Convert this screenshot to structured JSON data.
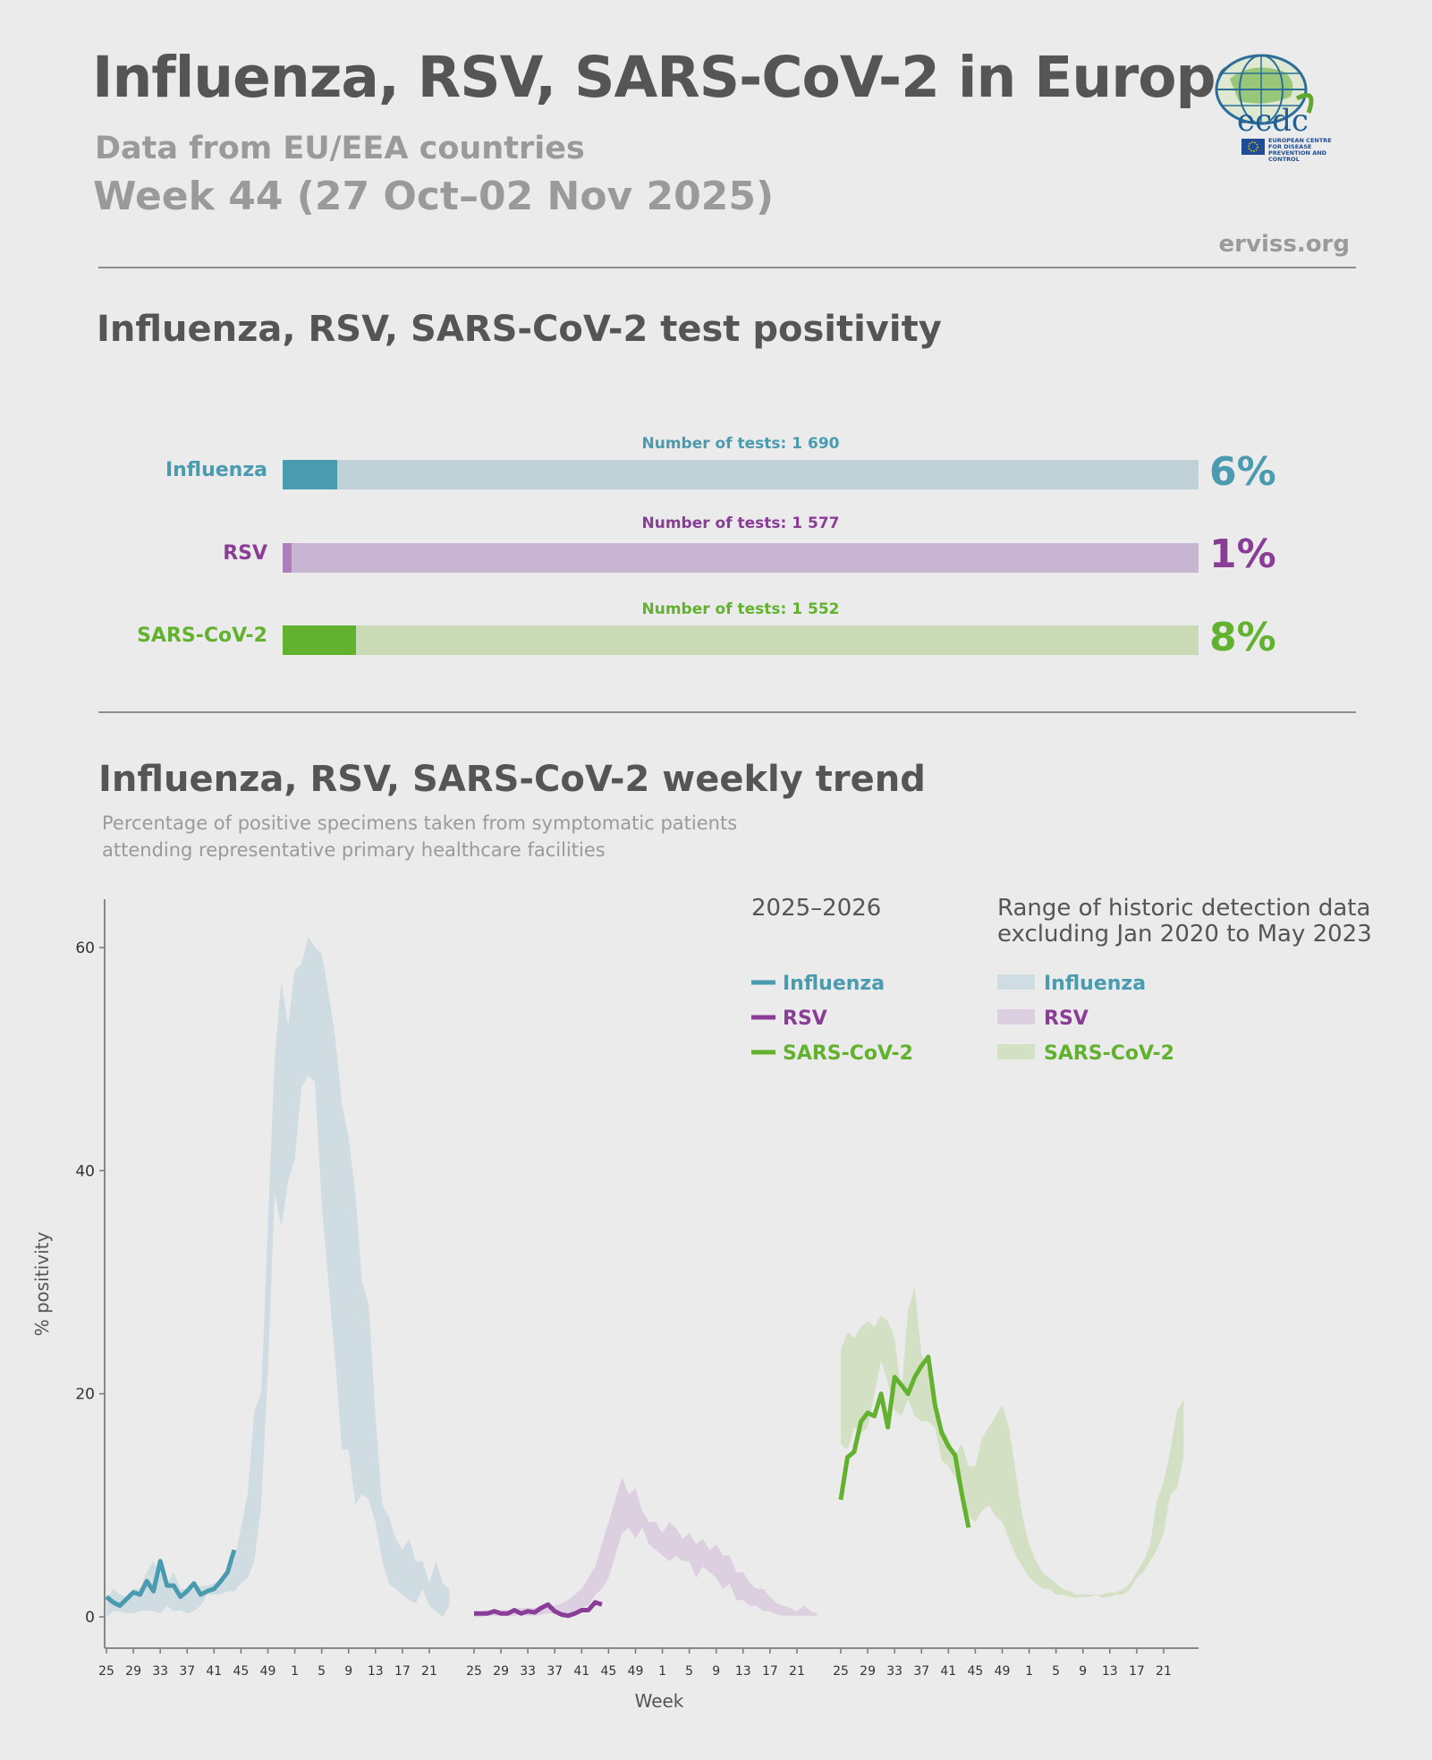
{
  "header": {
    "title": "Influenza, RSV, SARS-CoV-2 in Europe",
    "subtitle": "Data from EU/EEA countries",
    "week": "Week 44 (27 Oct–02 Nov 2025)",
    "source": "erviss.org"
  },
  "logo": {
    "acronym": "ecdc",
    "org_name": "EUROPEAN CENTRE FOR DISEASE PREVENTION AND CONTROL"
  },
  "positivity": {
    "title": "Influenza, RSV, SARS-CoV-2 test positivity",
    "rows": [
      {
        "name": "Influenza",
        "tests_label": "Number of tests: 1 690",
        "value": 6,
        "pct_label": "6%",
        "color": "#4a9bb0",
        "track_color": "#bfd0d6"
      },
      {
        "name": "RSV",
        "tests_label": "Number of tests: 1 577",
        "value": 1,
        "pct_label": "1%",
        "color": "#b07dbb",
        "label_color": "#8a3d97",
        "track_color": "#c8b5d3"
      },
      {
        "name": "SARS-CoV-2",
        "tests_label": "Number of tests: 1 552",
        "value": 8,
        "pct_label": "8%",
        "color": "#63b22f",
        "track_color": "#cad9b6"
      }
    ]
  },
  "trend": {
    "title": "Influenza, RSV, SARS-CoV-2 weekly trend",
    "description_line1": "Percentage of positive specimens taken from symptomatic patients",
    "description_line2": "attending representative primary healthcare facilities",
    "legend_current_title": "2025–2026",
    "legend_range_title_line1": "Range of historic detection data",
    "legend_range_title_line2": "excluding Jan 2020 to May 2023"
  },
  "chart_data": {
    "type": "line",
    "ylabel": "% positivity",
    "xlabel": "Week",
    "ylim": [
      -2.5,
      64
    ],
    "yticks": [
      0,
      20,
      40,
      60
    ],
    "xtick_labels": [
      "25",
      "29",
      "33",
      "37",
      "41",
      "45",
      "49",
      "1",
      "5",
      "9",
      "13",
      "17",
      "21"
    ],
    "weeks": [
      25,
      26,
      27,
      28,
      29,
      30,
      31,
      32,
      33,
      34,
      35,
      36,
      37,
      38,
      39,
      40,
      41,
      42,
      43,
      44,
      45,
      46,
      47,
      48,
      49,
      50,
      51,
      52,
      1,
      2,
      3,
      4,
      5,
      6,
      7,
      8,
      9,
      10,
      11,
      12,
      13,
      14,
      15,
      16,
      17,
      18,
      19,
      20,
      21,
      22,
      23,
      24
    ],
    "panels": [
      {
        "name": "Influenza",
        "color": "#4a9bb0",
        "band_color": "#cfdce2",
        "current": [
          1.8,
          1.3,
          1.0,
          1.6,
          2.2,
          2.0,
          3.2,
          2.3,
          5.0,
          2.8,
          2.8,
          1.8,
          2.3,
          3.0,
          2.0,
          2.3,
          2.5,
          3.2,
          4.0,
          6.0
        ],
        "range_low": [
          0.0,
          0.5,
          0.5,
          0.3,
          0.3,
          0.5,
          0.6,
          0.5,
          0.3,
          1.0,
          0.5,
          0.6,
          0.3,
          0.5,
          1.0,
          2.0,
          2.0,
          2.0,
          2.3,
          2.3,
          3.0,
          3.5,
          5.0,
          10.0,
          22.0,
          38.0,
          35.0,
          39.0,
          41.0,
          47.5,
          48.5,
          48.0,
          37.0,
          30.0,
          23.0,
          15.0,
          15.0,
          10.0,
          11.0,
          10.5,
          8.5,
          5.0,
          3.0,
          2.5,
          2.0,
          1.5,
          1.2,
          2.5,
          1.0,
          0.5,
          0.0,
          1.0
        ],
        "range_high": [
          1.5,
          2.5,
          2.0,
          1.8,
          2.5,
          2.5,
          4.0,
          5.0,
          3.8,
          3.0,
          4.0,
          2.5,
          2.5,
          2.5,
          2.8,
          2.8,
          3.0,
          3.2,
          4.0,
          5.0,
          8.0,
          11.0,
          18.5,
          20.0,
          35.0,
          50.0,
          57.0,
          53.0,
          58.0,
          58.5,
          61.0,
          60.0,
          59.5,
          56.0,
          52.0,
          46.0,
          43.0,
          38.0,
          30.0,
          28.0,
          18.0,
          10.0,
          9.0,
          7.0,
          6.0,
          7.0,
          5.0,
          5.0,
          3.0,
          5.0,
          3.0,
          2.5
        ]
      },
      {
        "name": "RSV",
        "color": "#8a3d97",
        "band_color": "#dccfe0",
        "current": [
          0.3,
          0.3,
          0.3,
          0.5,
          0.3,
          0.3,
          0.6,
          0.3,
          0.5,
          0.4,
          0.8,
          1.1,
          0.5,
          0.2,
          0.1,
          0.3,
          0.6,
          0.6,
          1.3,
          1.1
        ],
        "range_low": [
          0.0,
          0.0,
          0.1,
          0.1,
          0.1,
          0.1,
          0.1,
          0.2,
          0.1,
          0.1,
          0.2,
          0.3,
          0.3,
          0.2,
          0.3,
          0.5,
          0.8,
          1.0,
          2.0,
          2.5,
          3.5,
          5.5,
          7.5,
          8.0,
          7.0,
          8.0,
          6.5,
          6.0,
          5.5,
          5.0,
          5.5,
          5.0,
          5.0,
          3.5,
          4.5,
          4.0,
          3.5,
          2.5,
          3.0,
          1.5,
          1.5,
          1.0,
          1.0,
          0.5,
          0.5,
          0.2,
          0.1,
          0.1,
          0.1,
          0.1,
          0.1,
          0.1
        ],
        "range_high": [
          0.5,
          0.5,
          0.6,
          0.6,
          0.6,
          0.6,
          0.7,
          0.8,
          0.8,
          0.8,
          1.0,
          1.0,
          1.0,
          1.2,
          1.5,
          2.0,
          2.5,
          3.5,
          4.5,
          6.5,
          8.5,
          10.5,
          12.5,
          11.0,
          11.5,
          9.5,
          8.5,
          8.5,
          7.5,
          8.5,
          8.0,
          7.0,
          7.5,
          6.5,
          7.0,
          6.0,
          6.5,
          5.5,
          5.5,
          4.0,
          4.0,
          3.0,
          2.5,
          2.5,
          1.8,
          1.2,
          1.0,
          0.8,
          0.5,
          1.0,
          0.5,
          0.3
        ]
      },
      {
        "name": "SARS-CoV-2",
        "color": "#63b22f",
        "band_color": "#d3e0c4",
        "current": [
          10.5,
          14.3,
          14.8,
          17.5,
          18.3,
          18.0,
          20.0,
          17.0,
          21.5,
          20.8,
          20.0,
          21.5,
          22.5,
          23.3,
          19.0,
          16.5,
          15.3,
          14.5,
          11.0,
          8.0
        ],
        "range_low": [
          15.5,
          15.0,
          17.0,
          16.5,
          17.0,
          20.0,
          23.0,
          21.0,
          18.5,
          18.0,
          19.5,
          18.0,
          17.5,
          17.5,
          17.0,
          14.0,
          13.5,
          12.5,
          11.0,
          9.0,
          8.5,
          9.5,
          10.0,
          9.0,
          8.5,
          7.0,
          5.5,
          4.5,
          3.5,
          3.0,
          2.5,
          2.5,
          2.0,
          2.0,
          1.8,
          1.7,
          1.8,
          1.8,
          2.0,
          1.7,
          1.8,
          2.0,
          2.0,
          2.5,
          3.5,
          4.0,
          5.0,
          6.0,
          7.5,
          11.0,
          11.5,
          14.5
        ],
        "range_high": [
          24.0,
          25.5,
          25.0,
          26.0,
          26.5,
          26.0,
          27.0,
          26.5,
          25.0,
          20.0,
          27.5,
          29.5,
          23.5,
          22.0,
          20.0,
          17.0,
          16.0,
          14.5,
          15.5,
          13.5,
          13.5,
          16.0,
          17.0,
          18.0,
          19.0,
          17.0,
          13.0,
          9.0,
          6.5,
          5.0,
          4.0,
          3.5,
          3.0,
          2.5,
          2.3,
          2.0,
          2.0,
          2.0,
          2.0,
          2.0,
          2.2,
          2.2,
          2.5,
          3.0,
          4.0,
          5.0,
          6.5,
          10.5,
          12.0,
          15.0,
          18.5,
          19.5
        ]
      }
    ]
  }
}
